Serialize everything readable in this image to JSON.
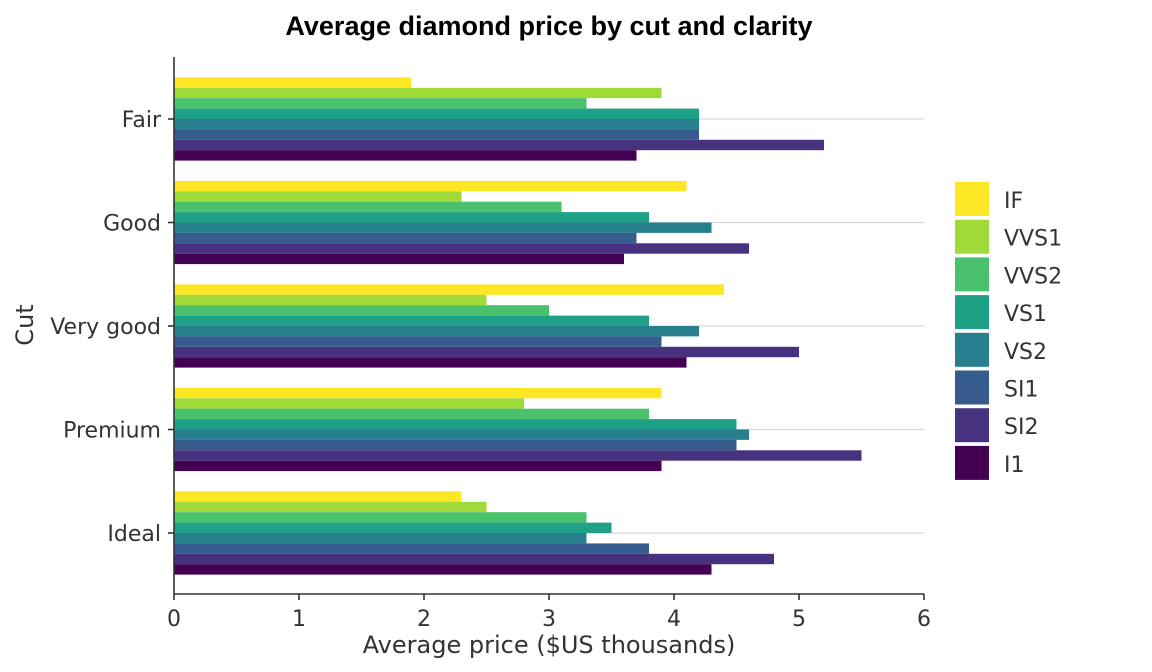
{
  "chart_data": {
    "type": "bar",
    "orientation": "horizontal",
    "title": "Average diamond price by cut and clarity",
    "xlabel": "Average price ($US thousands)",
    "ylabel": "Cut",
    "xlim": [
      0,
      6
    ],
    "xticks": [
      "0",
      "1",
      "2",
      "3",
      "4",
      "5",
      "6"
    ],
    "categories": [
      "Fair",
      "Good",
      "Very good",
      "Premium",
      "Ideal"
    ],
    "grid": "horizontal major",
    "legend_position": "right",
    "series": [
      {
        "name": "IF",
        "color": "#fde725",
        "values": [
          1.9,
          4.1,
          4.4,
          3.9,
          2.3
        ]
      },
      {
        "name": "VVS1",
        "color": "#a0da39",
        "values": [
          3.9,
          2.3,
          2.5,
          2.8,
          2.5
        ]
      },
      {
        "name": "VVS2",
        "color": "#4ac16d",
        "values": [
          3.3,
          3.1,
          3.0,
          3.8,
          3.3
        ]
      },
      {
        "name": "VS1",
        "color": "#1fa187",
        "values": [
          4.2,
          3.8,
          3.8,
          4.5,
          3.5
        ]
      },
      {
        "name": "VS2",
        "color": "#277f8e",
        "values": [
          4.2,
          4.3,
          4.2,
          4.6,
          3.3
        ]
      },
      {
        "name": "SI1",
        "color": "#365c8d",
        "values": [
          4.2,
          3.7,
          3.9,
          4.5,
          3.8
        ]
      },
      {
        "name": "SI2",
        "color": "#46327e",
        "values": [
          5.2,
          4.6,
          5.0,
          5.5,
          4.8
        ]
      },
      {
        "name": "I1",
        "color": "#440154",
        "values": [
          3.7,
          3.6,
          4.1,
          3.9,
          4.3
        ]
      }
    ]
  }
}
